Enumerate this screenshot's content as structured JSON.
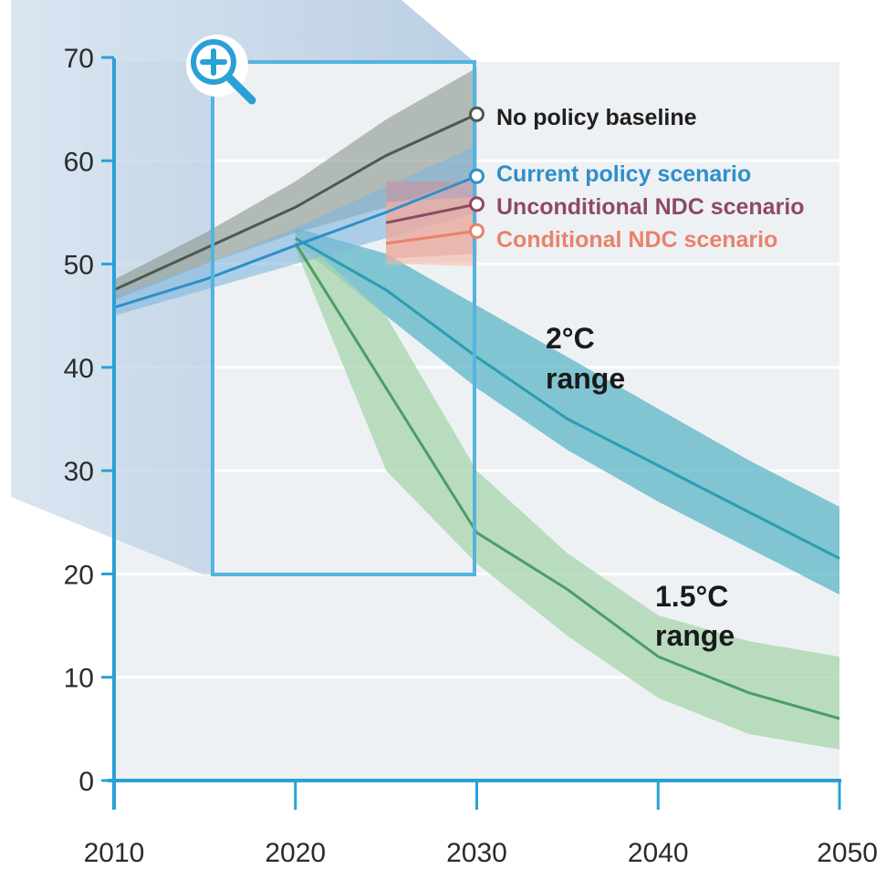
{
  "chart_data": {
    "type": "area",
    "x_ticks": [
      2010,
      2020,
      2030,
      2040,
      2050
    ],
    "y_ticks": [
      0,
      10,
      20,
      30,
      40,
      50,
      60,
      70
    ],
    "xlim": [
      2010,
      2050
    ],
    "ylim": [
      0,
      70
    ],
    "grid": "horizontal",
    "series": [
      {
        "name": "No policy baseline",
        "color": "#4a5a52",
        "band_color": "#8a968c",
        "x": [
          2010,
          2015,
          2020,
          2025,
          2030
        ],
        "y": [
          47.5,
          51.5,
          55.5,
          60.5,
          64.5
        ],
        "low": [
          46.5,
          50,
          53,
          55.5,
          58.5
        ],
        "high": [
          48.5,
          53,
          58,
          64,
          69
        ]
      },
      {
        "name": "Current policy scenario",
        "color": "#2f8fc9",
        "band_color": "#7fb8dc",
        "x": [
          2010,
          2015,
          2020,
          2025,
          2030
        ],
        "y": [
          45.8,
          48.5,
          51.8,
          55,
          58.5
        ],
        "low": [
          45,
          47.5,
          50,
          52.5,
          55
        ],
        "high": [
          47,
          50,
          53.5,
          57.5,
          61.5
        ]
      },
      {
        "name": "Unconditional NDC scenario",
        "color": "#8e4a62",
        "band_color": "#cf8f9a",
        "x": [
          2025,
          2030
        ],
        "y": [
          54,
          55.8
        ],
        "low": [
          50.5,
          51
        ],
        "high": [
          58,
          58
        ]
      },
      {
        "name": "Conditional NDC scenario",
        "color": "#e8826a",
        "band_color": "#f3b5a3",
        "x": [
          2025,
          2030
        ],
        "y": [
          52,
          53.2
        ],
        "low": [
          50,
          49.8
        ],
        "high": [
          56,
          56.5
        ]
      }
    ],
    "ranges": [
      {
        "label": "2°C range",
        "line_color": "#2a9db2",
        "band_color": "#5bb5c6",
        "x": [
          2020,
          2025,
          2030,
          2035,
          2040,
          2045,
          2050
        ],
        "y": [
          52.5,
          47.5,
          41,
          35,
          30.5,
          26,
          21.5
        ],
        "low": [
          52,
          45,
          38,
          32,
          27,
          22.5,
          18
        ],
        "high": [
          53.5,
          51,
          46,
          41,
          36,
          31,
          26.5
        ]
      },
      {
        "label": "1.5°C range",
        "line_color": "#4b9e63",
        "band_color": "#a8d4ac",
        "x": [
          2020,
          2025,
          2030,
          2035,
          2040,
          2045,
          2050
        ],
        "y": [
          52,
          38,
          24,
          18.5,
          12,
          8.5,
          6
        ],
        "low": [
          51.5,
          30,
          21,
          14,
          8,
          4.5,
          3
        ],
        "high": [
          53,
          45,
          30,
          22,
          16,
          13.5,
          12
        ]
      }
    ],
    "annotations": [
      "2°C",
      "range",
      "1.5°C",
      "range"
    ]
  },
  "colors": {
    "axis": "#2aa0d6",
    "plot_background": "#eef1f4",
    "grid": "#ffffff",
    "zoom_icon": "#2aa0d6",
    "emission_gap_shadow": "#b9cfe2"
  },
  "icons": {
    "zoom": "zoom-in-icon"
  }
}
